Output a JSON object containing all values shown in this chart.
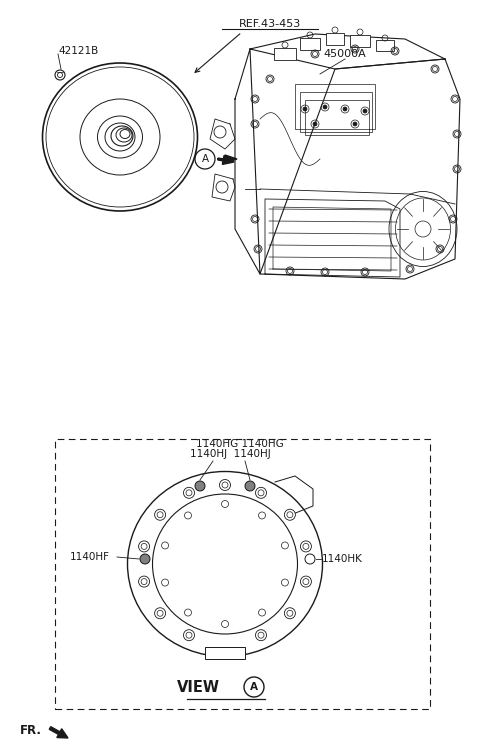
{
  "bg_color": "#ffffff",
  "lc": "#1a1a1a",
  "figsize": [
    4.8,
    7.49
  ],
  "dpi": 100,
  "label_42121B": "42121B",
  "label_ref": "REF.43-453",
  "label_45000A": "45000A",
  "label_1140HG": "1140HG 1140HG",
  "label_1140HJ": "1140HJ  1140HJ",
  "label_1140HF": "1140HF",
  "label_1140HK": "1140HK",
  "label_fr": "FR.",
  "label_view": "VIEW",
  "label_A": "A",
  "fs": 7.5
}
